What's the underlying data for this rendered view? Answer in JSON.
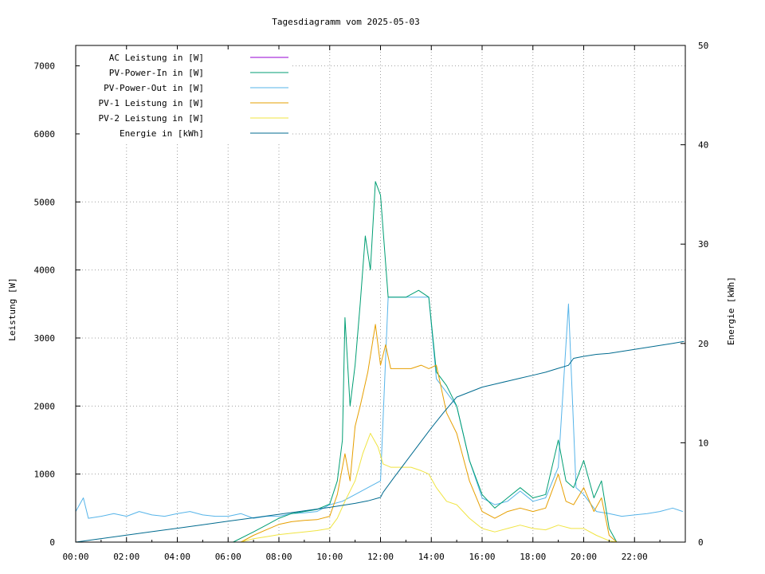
{
  "chart_data": {
    "type": "line",
    "title": "Tagesdiagramm vom 2025-05-03",
    "xlabel": "",
    "ylabel": "Leistung [W]",
    "y2label": "Energie [kWh]",
    "x_ticks": [
      "00:00",
      "02:00",
      "04:00",
      "06:00",
      "08:00",
      "10:00",
      "12:00",
      "14:00",
      "16:00",
      "18:00",
      "20:00",
      "22:00"
    ],
    "x_range_hours": [
      0,
      24
    ],
    "ylim": [
      0,
      7300
    ],
    "y_ticks": [
      0,
      1000,
      2000,
      3000,
      4000,
      5000,
      6000,
      7000
    ],
    "y2lim": [
      0,
      50
    ],
    "y2_ticks": [
      0,
      10,
      20,
      30,
      40,
      50
    ],
    "grid": true,
    "legend_position": "top-left",
    "series": [
      {
        "name": "AC Leistung in [W]",
        "axis": "left",
        "color": "#9400d3",
        "x": [],
        "y": []
      },
      {
        "name": "PV-Power-In in [W]",
        "axis": "left",
        "color": "#009e73",
        "x": [
          6.2,
          7.0,
          7.5,
          8.0,
          8.5,
          9.0,
          9.5,
          10.0,
          10.3,
          10.5,
          10.6,
          10.8,
          11.0,
          11.2,
          11.4,
          11.6,
          11.8,
          12.0,
          12.3,
          12.6,
          13.0,
          13.5,
          13.9,
          14.2,
          14.6,
          15.0,
          15.5,
          16.0,
          16.5,
          17.0,
          17.5,
          18.0,
          18.5,
          19.0,
          19.3,
          19.6,
          20.0,
          20.4,
          20.7,
          21.0,
          21.3
        ],
        "y": [
          0,
          150,
          250,
          350,
          420,
          450,
          480,
          560,
          900,
          1500,
          3300,
          2000,
          2600,
          3500,
          4500,
          4000,
          5300,
          5100,
          3600,
          3600,
          3600,
          3700,
          3600,
          2500,
          2300,
          2000,
          1200,
          700,
          500,
          650,
          800,
          650,
          700,
          1500,
          900,
          800,
          1200,
          650,
          900,
          200,
          0
        ]
      },
      {
        "name": "PV-Power-Out in [W]",
        "axis": "left",
        "color": "#56b4e9",
        "x": [
          0.0,
          0.3,
          0.5,
          1.0,
          1.5,
          2.0,
          2.5,
          3.0,
          3.5,
          4.0,
          4.5,
          5.0,
          5.5,
          6.0,
          6.5,
          7.0,
          7.5,
          8.0,
          8.5,
          9.0,
          9.5,
          10.0,
          10.5,
          11.0,
          11.5,
          12.0,
          12.3,
          12.7,
          13.0,
          13.5,
          13.9,
          14.2,
          14.6,
          15.0,
          15.5,
          16.0,
          16.5,
          17.0,
          17.5,
          18.0,
          18.5,
          19.0,
          19.4,
          19.7,
          20.0,
          20.5,
          21.0,
          21.5,
          22.0,
          22.5,
          23.0,
          23.5,
          23.9
        ],
        "y": [
          450,
          650,
          350,
          380,
          420,
          380,
          450,
          400,
          380,
          420,
          450,
          400,
          380,
          380,
          420,
          350,
          380,
          380,
          420,
          430,
          450,
          550,
          600,
          700,
          800,
          900,
          3600,
          3600,
          3600,
          3600,
          3600,
          2400,
          2200,
          2000,
          1200,
          650,
          550,
          600,
          750,
          600,
          650,
          1100,
          3500,
          800,
          700,
          450,
          420,
          380,
          400,
          420,
          450,
          500,
          450
        ]
      },
      {
        "name": "PV-1 Leistung in [W]",
        "axis": "left",
        "color": "#e69f00",
        "x": [
          6.5,
          7.0,
          7.5,
          8.0,
          8.5,
          9.0,
          9.5,
          10.0,
          10.3,
          10.6,
          10.8,
          11.0,
          11.2,
          11.5,
          11.8,
          12.0,
          12.2,
          12.4,
          12.8,
          13.2,
          13.6,
          13.9,
          14.2,
          14.6,
          15.0,
          15.5,
          16.0,
          16.5,
          17.0,
          17.5,
          18.0,
          18.5,
          19.0,
          19.3,
          19.6,
          20.0,
          20.4,
          20.7,
          21.0,
          21.3
        ],
        "y": [
          0,
          100,
          180,
          260,
          300,
          320,
          330,
          380,
          700,
          1300,
          900,
          1700,
          2000,
          2500,
          3200,
          2600,
          2900,
          2550,
          2550,
          2550,
          2600,
          2550,
          2600,
          1900,
          1600,
          900,
          450,
          350,
          450,
          500,
          450,
          500,
          1000,
          600,
          550,
          800,
          450,
          650,
          100,
          0
        ]
      },
      {
        "name": "PV-2 Leistung in [W]",
        "axis": "left",
        "color": "#f0e442",
        "x": [
          6.5,
          7.0,
          7.5,
          8.0,
          8.5,
          9.0,
          9.5,
          10.0,
          10.3,
          10.6,
          11.0,
          11.3,
          11.6,
          11.9,
          12.1,
          12.4,
          12.8,
          13.2,
          13.6,
          13.9,
          14.2,
          14.6,
          15.0,
          15.5,
          16.0,
          16.5,
          17.0,
          17.5,
          18.0,
          18.5,
          19.0,
          19.5,
          20.0,
          20.5,
          21.0,
          21.3
        ],
        "y": [
          0,
          50,
          80,
          110,
          130,
          150,
          170,
          200,
          350,
          600,
          900,
          1300,
          1600,
          1400,
          1150,
          1100,
          1100,
          1100,
          1050,
          1000,
          800,
          600,
          550,
          350,
          200,
          150,
          200,
          250,
          200,
          180,
          250,
          200,
          200,
          100,
          20,
          0
        ]
      },
      {
        "name": "Energie in [kWh]",
        "axis": "right",
        "color": "#006b8f",
        "x": [
          0.0,
          1.0,
          2.0,
          3.0,
          4.0,
          5.0,
          6.0,
          7.0,
          8.0,
          9.0,
          10.0,
          11.0,
          11.5,
          12.0,
          12.1,
          12.5,
          13.0,
          13.5,
          14.0,
          14.5,
          15.0,
          15.5,
          16.0,
          16.5,
          17.0,
          17.5,
          18.0,
          18.5,
          19.0,
          19.4,
          19.6,
          20.0,
          20.5,
          21.0,
          21.5,
          22.0,
          22.5,
          23.0,
          23.5,
          23.95
        ],
        "y": [
          0.0,
          0.35,
          0.7,
          1.05,
          1.4,
          1.75,
          2.1,
          2.45,
          2.8,
          3.15,
          3.5,
          3.9,
          4.15,
          4.5,
          5.0,
          6.4,
          8.1,
          9.8,
          11.5,
          13.1,
          14.6,
          15.1,
          15.6,
          15.9,
          16.2,
          16.5,
          16.8,
          17.1,
          17.5,
          17.8,
          18.5,
          18.7,
          18.9,
          19.0,
          19.2,
          19.4,
          19.6,
          19.8,
          20.0,
          20.2
        ]
      }
    ]
  }
}
